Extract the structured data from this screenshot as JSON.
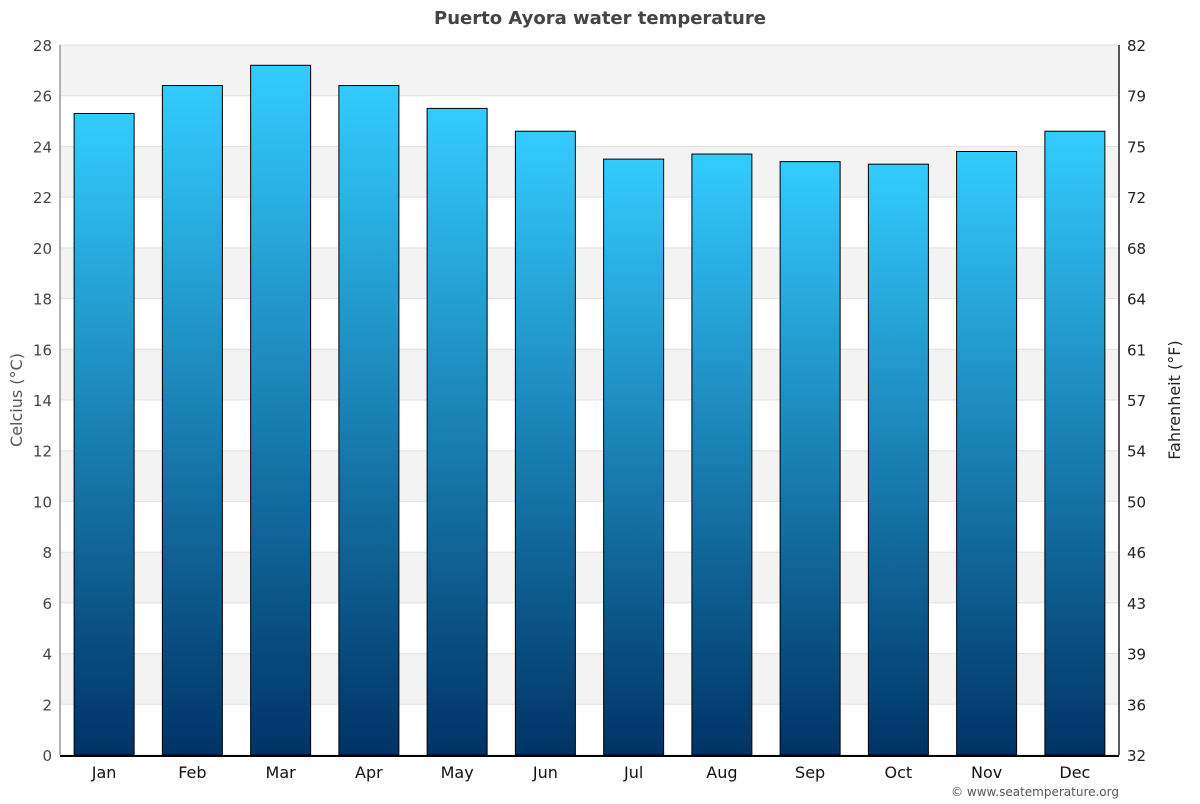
{
  "chart_data": {
    "type": "bar",
    "title": "Puerto Ayora water temperature",
    "ylabel": "Celcius (°C)",
    "ylabel_right": "Fahrenheit (°F)",
    "categories": [
      "Jan",
      "Feb",
      "Mar",
      "Apr",
      "May",
      "Jun",
      "Jul",
      "Aug",
      "Sep",
      "Oct",
      "Nov",
      "Dec"
    ],
    "values": [
      25.3,
      26.4,
      27.2,
      26.4,
      25.5,
      24.6,
      23.5,
      23.7,
      23.4,
      23.3,
      23.8,
      24.6
    ],
    "ylim": [
      0,
      28
    ],
    "yticks": [
      0,
      2,
      4,
      6,
      8,
      10,
      12,
      14,
      16,
      18,
      20,
      22,
      24,
      26,
      28
    ],
    "yticks_right": [
      "32",
      "36",
      "39",
      "43",
      "46",
      "50",
      "54",
      "57",
      "61",
      "64",
      "68",
      "72",
      "75",
      "79",
      "82"
    ],
    "grid": "alternating horizontal bands",
    "colors": {
      "bar_top": "#33ccff",
      "bar_bottom": "#003366",
      "band": "#f3f3f3",
      "title": "#444444"
    }
  },
  "footer": {
    "credit": "© www.seatemperature.org"
  }
}
